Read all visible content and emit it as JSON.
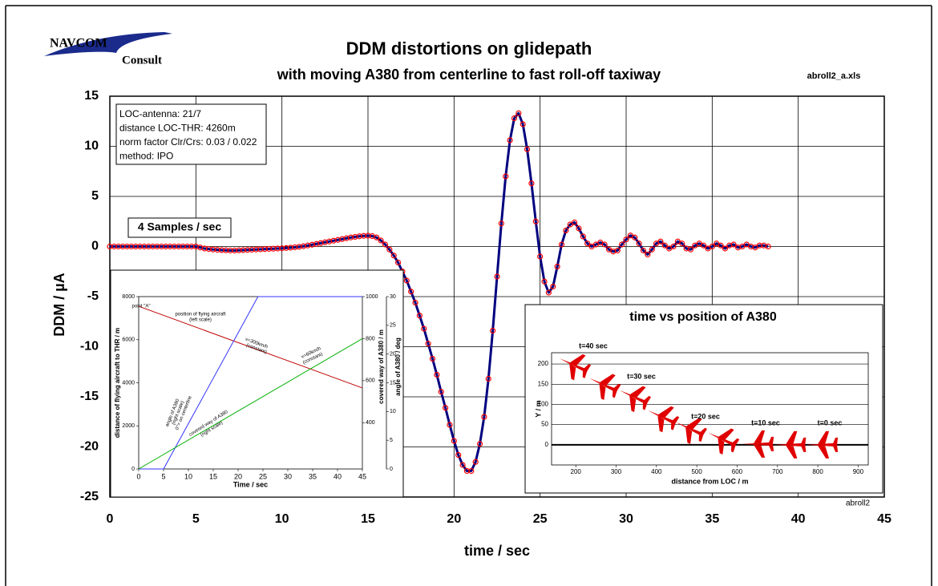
{
  "logo": [
    "NAVCOM",
    "Consult"
  ],
  "chart_data": [
    {
      "type": "line",
      "title": "DDM distortions on glidepath",
      "subtitle": "with moving A380 from centerline to fast roll-off taxiway",
      "file_label": "abroll2_a.xls",
      "sheet_label": "abroll2",
      "xlabel": "time / sec",
      "ylabel": "DDM / µA",
      "info_box": [
        "LOC-antenna: 21/7",
        "distance LOC-THR: 4260m",
        "norm factor Clr/Crs: 0.03 / 0.022",
        "method: IPO"
      ],
      "samples_label": "4 Samples / sec",
      "x": [
        0,
        0.25,
        0.5,
        0.75,
        1,
        1.25,
        1.5,
        1.75,
        2,
        2.25,
        2.5,
        2.75,
        3,
        3.25,
        3.5,
        3.75,
        4,
        4.25,
        4.5,
        4.75,
        5,
        5.25,
        5.5,
        5.75,
        6,
        6.25,
        6.5,
        6.75,
        7,
        7.25,
        7.5,
        7.75,
        8,
        8.25,
        8.5,
        8.75,
        9,
        9.25,
        9.5,
        9.75,
        10,
        10.25,
        10.5,
        10.75,
        11,
        11.25,
        11.5,
        11.75,
        12,
        12.25,
        12.5,
        12.75,
        13,
        13.25,
        13.5,
        13.75,
        14,
        14.25,
        14.5,
        14.75,
        15,
        15.25,
        15.5,
        15.75,
        16,
        16.25,
        16.5,
        16.75,
        17,
        17.25,
        17.5,
        17.75,
        18,
        18.25,
        18.5,
        18.75,
        19,
        19.25,
        19.5,
        19.75,
        20,
        20.25,
        20.5,
        20.75,
        21,
        21.25,
        21.5,
        21.75,
        22,
        22.25,
        22.5,
        22.75,
        23,
        23.25,
        23.5,
        23.75,
        24,
        24.25,
        24.5,
        24.75,
        25,
        25.25,
        25.5,
        25.75,
        26,
        26.25,
        26.5,
        26.75,
        27,
        27.25,
        27.5,
        27.75,
        28,
        28.25,
        28.5,
        28.75,
        29,
        29.25,
        29.5,
        29.75,
        30,
        30.25,
        30.5,
        30.75,
        31,
        31.25,
        31.5,
        31.75,
        32,
        32.25,
        32.5,
        32.75,
        33,
        33.25,
        33.5,
        33.75,
        34,
        34.25,
        34.5,
        34.75,
        35,
        35.25,
        35.5,
        35.75,
        36,
        36.25,
        36.5,
        36.75,
        37,
        37.25,
        37.5,
        37.75,
        38,
        38.25
      ],
      "series": [
        {
          "color": "#00007f",
          "marker_color": "#ff0000",
          "values": [
            0,
            0,
            0,
            0,
            0,
            0,
            0,
            0,
            0,
            0,
            0,
            0,
            0,
            0,
            0,
            0,
            0,
            0,
            0,
            0,
            0,
            -0.1,
            -0.2,
            -0.25,
            -0.3,
            -0.33,
            -0.36,
            -0.38,
            -0.4,
            -0.4,
            -0.38,
            -0.36,
            -0.34,
            -0.32,
            -0.3,
            -0.28,
            -0.26,
            -0.24,
            -0.22,
            -0.2,
            -0.18,
            -0.15,
            -0.12,
            -0.08,
            -0.03,
            0.03,
            0.1,
            0.18,
            0.26,
            0.34,
            0.42,
            0.5,
            0.58,
            0.66,
            0.74,
            0.82,
            0.9,
            0.96,
            1.02,
            1.06,
            1.08,
            1.04,
            0.9,
            0.6,
            0.2,
            -0.3,
            -0.9,
            -1.6,
            -2.5,
            -3.4,
            -4.5,
            -5.6,
            -6.9,
            -8.2,
            -9.7,
            -11.2,
            -12.8,
            -14.5,
            -16.1,
            -17.8,
            -19.4,
            -20.8,
            -21.8,
            -22.4,
            -22.4,
            -21.5,
            -19.7,
            -17,
            -13.2,
            -8.4,
            -3,
            2.3,
            7,
            10.6,
            12.8,
            13.3,
            12.2,
            9.7,
            6.3,
            2.5,
            -1,
            -3.5,
            -4.6,
            -4,
            -2,
            0.2,
            1.6,
            2.2,
            2.4,
            1.8,
            1,
            0.3,
            0,
            0.2,
            0.4,
            0.2,
            -0.3,
            -0.5,
            -0.4,
            0.2,
            0.7,
            1.1,
            0.9,
            0.3,
            -0.4,
            -0.8,
            -0.3,
            0.3,
            0.5,
            0.1,
            -0.2,
            0,
            0.5,
            0.3,
            -0.2,
            -0.3,
            0.1,
            0.3,
            0.1,
            -0.2,
            0,
            0.3,
            0.1,
            -0.2,
            0.1,
            0.2,
            -0.1,
            0,
            0.2,
            0,
            -0.1,
            0.1,
            0.1,
            0
          ]
        }
      ],
      "xlim": [
        0,
        45
      ],
      "ylim": [
        -25,
        15
      ],
      "xticks": [
        0,
        5,
        10,
        15,
        20,
        25,
        30,
        35,
        40,
        45
      ],
      "yticks": [
        -25,
        -20,
        -15,
        -10,
        -5,
        0,
        5,
        10,
        15
      ],
      "grid": true
    },
    {
      "type": "line",
      "xlabel": "Time / sec",
      "ylabel": "distance of flying aircraft to THR / m",
      "y3label": "covered way of A380 / m",
      "y2label": "angle of A380 / deg",
      "annotations": [
        "point \"A\"",
        "position of flying aircraft",
        "(left scale)",
        "v=300km/h",
        "(constant)",
        "v=60km/h",
        "(constant)",
        "angle of A380",
        "(right scale)",
        "0°= on centerline",
        "covered way of A380",
        "(right scale)"
      ],
      "series": [
        {
          "color": "#c00000",
          "x": [
            0,
            45
          ],
          "values": [
            7550,
            3760
          ]
        },
        {
          "color": "#3333ff",
          "axis": "y2",
          "x": [
            0,
            5,
            24,
            45
          ],
          "values": [
            0,
            0,
            30,
            30
          ]
        },
        {
          "color": "#00b000",
          "axis": "y3",
          "x": [
            0,
            45
          ],
          "values": [
            180,
            800
          ]
        }
      ],
      "xlim": [
        0,
        45
      ],
      "ylim": [
        0,
        8000
      ],
      "y2lim": [
        0,
        30
      ],
      "y3lim": [
        180,
        1000
      ],
      "xticks": [
        0,
        5,
        10,
        15,
        20,
        25,
        30,
        35,
        40,
        45
      ],
      "yticks": [
        0,
        2000,
        4000,
        6000,
        8000
      ],
      "y2ticks": [
        0,
        5,
        10,
        15,
        20,
        25,
        30
      ],
      "y3ticks": [
        400,
        600,
        800,
        1000
      ]
    },
    {
      "type": "scatter",
      "title": "time vs position of A380",
      "xlabel": "distance from LOC / m",
      "ylabel": "Y / m",
      "annotations": [
        "t=40 sec",
        "t=30 sec",
        "t=20 sec",
        "t=10 sec",
        "t=0 sec"
      ],
      "series": [
        {
          "color": "#e00000",
          "x": [
            194,
            268,
            343,
            413,
            482,
            562,
            651,
            731,
            810
          ],
          "values": [
            198,
            149,
            119,
            69,
            40,
            14,
            2,
            0,
            0
          ]
        }
      ],
      "xlim": [
        140,
        925
      ],
      "ylim": [
        -50,
        228
      ],
      "xticks": [
        200,
        300,
        400,
        500,
        600,
        700,
        800,
        900
      ],
      "yticks": [
        0,
        50,
        100,
        150,
        200
      ],
      "grid": "y"
    }
  ]
}
